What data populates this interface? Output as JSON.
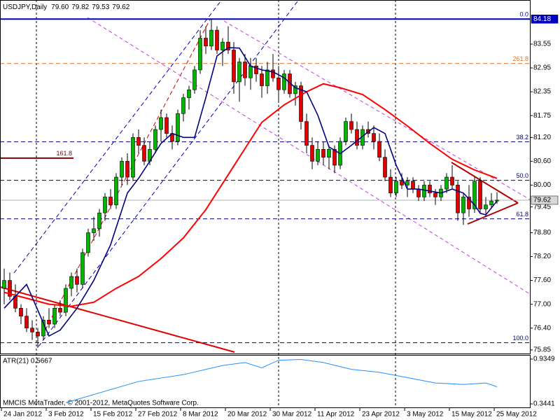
{
  "chart_data": [
    {
      "type": "candlestick",
      "title": "USDJPY,Daily",
      "last_ohlc_labels": [
        "79.60",
        "79.82",
        "79.53",
        "79.62"
      ],
      "categories": [
        "24 Jan 2012",
        null,
        null,
        null,
        null,
        null,
        null,
        null,
        "3 Feb 2012",
        null,
        null,
        null,
        null,
        null,
        null,
        null,
        "15 Feb 2012",
        null,
        null,
        null,
        null,
        null,
        null,
        null,
        "27 Feb 2012",
        null,
        null,
        null,
        null,
        null,
        null,
        null,
        "8 Mar 2012",
        null,
        null,
        null,
        null,
        null,
        null,
        null,
        "20 Mar 2012",
        null,
        null,
        null,
        null,
        null,
        null,
        null,
        "30 Mar 2012",
        null,
        null,
        null,
        null,
        null,
        null,
        null,
        "11 Apr 2012",
        null,
        null,
        null,
        null,
        null,
        null,
        null,
        "23 Apr 2012",
        null,
        null,
        null,
        null,
        null,
        null,
        null,
        "3 May 2012",
        null,
        null,
        null,
        null,
        null,
        null,
        null,
        "15 May 2012",
        null,
        null,
        null,
        null,
        null,
        null,
        null,
        "25 May 2012"
      ],
      "open": [
        77.4,
        77.6,
        77.2,
        76.9,
        76.7,
        76.4,
        76.3,
        76.2,
        76.6,
        76.5,
        76.9,
        76.8,
        77.4,
        77.7,
        77.5,
        78.3,
        78.8,
        78.9,
        79.3,
        79.7,
        79.5,
        80.2,
        80.6,
        80.2,
        81.2,
        81.0,
        80.6,
        80.9,
        81.4,
        81.7,
        81.3,
        81.1,
        81.8,
        82.2,
        82.4,
        82.9,
        83.7,
        83.5,
        83.9,
        83.4,
        83.6,
        83.4,
        82.6,
        83.1,
        82.7,
        83.0,
        82.8,
        82.5,
        82.9,
        82.7,
        82.4,
        82.8,
        82.3,
        82.5,
        81.6,
        81.0,
        80.6,
        80.9,
        80.7,
        80.9,
        80.5,
        81.1,
        81.6,
        81.4,
        81.0,
        81.4,
        81.3,
        81.1,
        80.7,
        80.2,
        79.8,
        80.1,
        80.0,
        80.1,
        79.9,
        79.7,
        80.0,
        79.8,
        79.7,
        79.9,
        80.2,
        80.0,
        79.3,
        79.7,
        79.4,
        80.1,
        79.4,
        79.5,
        79.6
      ],
      "high": [
        77.9,
        77.8,
        77.5,
        77.0,
        76.9,
        76.6,
        76.4,
        76.7,
        76.9,
        77.0,
        77.1,
        77.5,
        77.8,
        77.9,
        78.4,
        78.9,
        79.2,
        79.4,
        79.8,
        79.9,
        80.3,
        80.7,
        80.8,
        81.3,
        81.4,
        81.2,
        81.1,
        81.5,
        81.9,
        81.8,
        81.5,
        81.9,
        82.3,
        82.5,
        83.0,
        83.9,
        84.0,
        84.18,
        84.0,
        83.7,
        84.0,
        83.6,
        83.2,
        83.3,
        83.2,
        83.2,
        83.0,
        83.1,
        83.3,
        83.0,
        82.9,
        82.9,
        82.6,
        82.6,
        81.8,
        81.2,
        81.1,
        81.1,
        81.0,
        81.0,
        81.2,
        81.7,
        81.8,
        81.6,
        81.5,
        81.6,
        81.5,
        81.3,
        80.9,
        80.4,
        80.2,
        80.3,
        80.2,
        80.2,
        80.0,
        80.1,
        80.1,
        79.9,
        80.0,
        80.3,
        80.5,
        80.1,
        79.8,
        80.0,
        80.2,
        80.2,
        79.7,
        79.8,
        79.82
      ],
      "low": [
        77.0,
        77.1,
        76.8,
        76.5,
        76.3,
        76.1,
        75.9,
        76.1,
        76.4,
        76.4,
        76.7,
        76.7,
        77.2,
        77.3,
        77.4,
        78.2,
        78.6,
        78.7,
        79.1,
        79.4,
        79.4,
        80.0,
        80.0,
        80.1,
        80.8,
        80.5,
        80.5,
        80.8,
        81.1,
        81.2,
        80.9,
        81.0,
        81.6,
        81.9,
        82.3,
        82.8,
        83.3,
        83.4,
        83.3,
        83.0,
        83.3,
        82.3,
        82.1,
        82.5,
        82.4,
        82.6,
        82.2,
        82.3,
        82.6,
        82.1,
        82.3,
        82.2,
        82.0,
        81.4,
        80.8,
        80.4,
        80.5,
        80.5,
        80.4,
        80.3,
        80.4,
        81.0,
        81.3,
        80.9,
        80.9,
        81.2,
        80.9,
        80.6,
        80.1,
        79.7,
        79.7,
        79.9,
        79.7,
        79.8,
        79.6,
        79.6,
        79.7,
        79.5,
        79.6,
        79.8,
        79.9,
        79.1,
        79.0,
        79.2,
        79.3,
        79.3,
        79.2,
        79.4,
        79.53
      ],
      "close": [
        77.6,
        77.2,
        76.9,
        76.7,
        76.4,
        76.3,
        76.2,
        76.6,
        76.5,
        76.9,
        76.8,
        77.4,
        77.7,
        77.5,
        78.3,
        78.8,
        78.9,
        79.3,
        79.7,
        79.5,
        80.2,
        80.6,
        80.2,
        81.2,
        81.0,
        80.6,
        80.9,
        81.4,
        81.7,
        81.3,
        81.1,
        81.8,
        82.2,
        82.4,
        82.9,
        83.7,
        83.5,
        83.9,
        83.4,
        83.6,
        83.4,
        82.6,
        83.1,
        82.7,
        83.0,
        82.8,
        82.5,
        82.9,
        82.7,
        82.4,
        82.8,
        82.3,
        82.5,
        81.6,
        81.0,
        80.6,
        80.9,
        80.7,
        80.9,
        80.5,
        81.1,
        81.6,
        81.4,
        81.0,
        81.4,
        81.3,
        81.1,
        80.7,
        80.2,
        79.8,
        80.1,
        80.0,
        80.1,
        79.9,
        79.7,
        80.0,
        79.8,
        79.7,
        79.9,
        80.2,
        80.0,
        79.3,
        79.7,
        79.4,
        80.1,
        79.4,
        79.5,
        79.6,
        79.62
      ],
      "up_color": "#00b400",
      "down_color": "#e00000",
      "ylim": [
        75.76,
        84.66
      ],
      "yticks": [
        83.55,
        82.95,
        82.35,
        81.75,
        {
          "value": 81.2,
          "label": "81.20"
        },
        {
          "value": 80.6,
          "label": "80.60"
        },
        {
          "value": 80,
          "label": "80.00"
        },
        79.45,
        {
          "value": 78.8,
          "label": "78.80"
        },
        {
          "value": 78.2,
          "label": "78.20"
        },
        {
          "value": 77.6,
          "label": "77.60"
        },
        {
          "value": 77,
          "label": "77.00"
        },
        {
          "value": 76.4,
          "label": "76.40"
        },
        75.85
      ],
      "moving_averages": [
        {
          "color": "#ff0000",
          "x": [
            0,
            8,
            12,
            16,
            20,
            24,
            28,
            32,
            36,
            40,
            44,
            46,
            50,
            54,
            57,
            60,
            64,
            68,
            72,
            76,
            80,
            84,
            88
          ],
          "values": [
            77.3,
            77.0,
            76.95,
            77.05,
            77.4,
            77.7,
            78.15,
            78.67,
            79.38,
            80.26,
            81.14,
            81.58,
            82.02,
            82.35,
            82.55,
            82.45,
            82.28,
            81.9,
            81.49,
            81.05,
            80.65,
            80.38,
            80.17
          ]
        },
        {
          "color": "#000080",
          "x": [
            0,
            4,
            8,
            10,
            13,
            16,
            19,
            22,
            24,
            26,
            28,
            30,
            32,
            34,
            36,
            38,
            40,
            42,
            44,
            46,
            48,
            50,
            52,
            54,
            56,
            58,
            60,
            62,
            64,
            66,
            68,
            70,
            72,
            74,
            76,
            78,
            80,
            82,
            84,
            85,
            86,
            88
          ],
          "values": [
            76.9,
            77.5,
            76.2,
            76.35,
            76.9,
            77.6,
            78.5,
            79.8,
            80.17,
            80.6,
            81.05,
            81.3,
            81.2,
            81.2,
            82.2,
            83.25,
            83.46,
            83.45,
            83.0,
            82.9,
            82.85,
            82.7,
            82.45,
            82.35,
            81.76,
            80.96,
            80.79,
            81.0,
            81.23,
            81.45,
            81.3,
            80.5,
            79.9,
            79.9,
            79.85,
            79.8,
            79.9,
            79.8,
            79.5,
            79.29,
            79.25,
            79.6
          ]
        }
      ],
      "fib_levels": [
        {
          "label": "0.0",
          "value": 84.18,
          "color": "#0000c0",
          "style": "solid"
        },
        {
          "label": "261.8",
          "value": 83.06,
          "color": "#e07020",
          "style": "dashed"
        },
        {
          "label": "38.2",
          "value": 81.09,
          "color": "#000080",
          "style": "dashed"
        },
        {
          "label": "50.0",
          "value": 80.12,
          "color": "#000080",
          "style": "dashed"
        },
        {
          "label": "61.8",
          "value": 79.15,
          "color": "#000080",
          "style": "dashed"
        },
        {
          "label": "100.0",
          "value": 76.03,
          "color": "#000080",
          "style": "dashed"
        },
        {
          "label": "161.8",
          "value": 80.68,
          "color": "#800000",
          "style": "partial"
        }
      ],
      "level_price": 84.18,
      "current_price": 79.62
    },
    {
      "type": "line",
      "title": "ATR(21) 0.5667",
      "color": "#1e90ff",
      "ylim": [
        0.298,
        0.99
      ],
      "yticks": [
        0.9349,
        0.3441
      ],
      "x": [
        11,
        24,
        32,
        39,
        43,
        46,
        49,
        53,
        57,
        62,
        67,
        72,
        77,
        82,
        86,
        88
      ],
      "values": [
        0.36,
        0.64,
        0.73,
        0.85,
        0.89,
        0.82,
        0.92,
        0.93,
        0.89,
        0.8,
        0.76,
        0.69,
        0.62,
        0.6,
        0.62,
        0.57
      ]
    }
  ],
  "footer_text": "MMCIS MetaTrader, © 2001-2012, MetaQuotes Software Corp."
}
